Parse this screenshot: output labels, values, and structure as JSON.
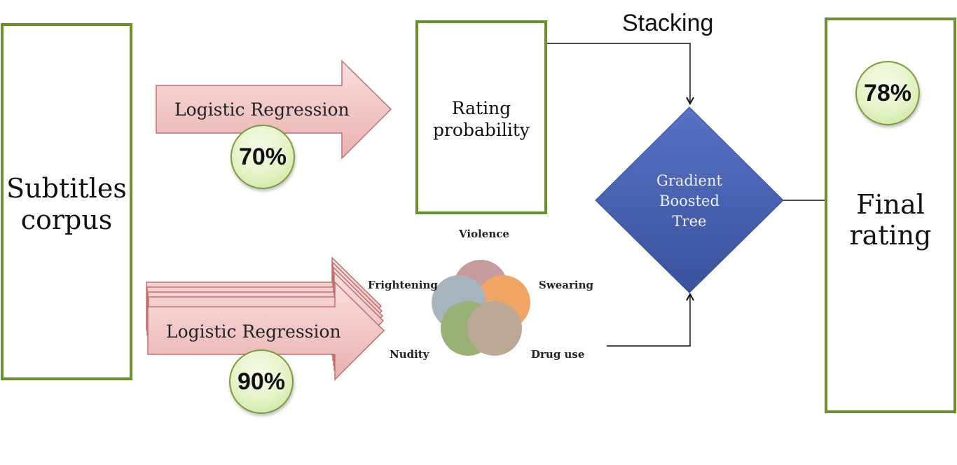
{
  "corpus": {
    "line1": "Subtitles",
    "line2": "corpus"
  },
  "top_model": {
    "label": "Logistic Regression",
    "accuracy": "70%"
  },
  "bottom_model": {
    "label": "Logistic Regression",
    "accuracy": "90%"
  },
  "rating_probability": {
    "line1": "Rating",
    "line2": "probability"
  },
  "stacking_label": "Stacking",
  "gbt": {
    "line1": "Gradient",
    "line2": "Boosted",
    "line3": "Tree"
  },
  "final": {
    "line1": "Final",
    "line2": "rating",
    "accuracy": "78%"
  },
  "categories": {
    "violence": "Violence",
    "frightening": "Frightening",
    "swearing": "Swearing",
    "nudity": "Nudity",
    "drug_use": "Drug use"
  },
  "colors": {
    "box_border": "#6a8f2e",
    "arrow_fill": "#f2c9c9",
    "arrow_stroke": "#c07070",
    "diamond": "#4a64b4",
    "violence": "#b67f84",
    "swearing": "#ec8c3c",
    "frightening": "#8fa0ad",
    "nudity": "#7e9a52",
    "drug_use": "#a9907a"
  }
}
